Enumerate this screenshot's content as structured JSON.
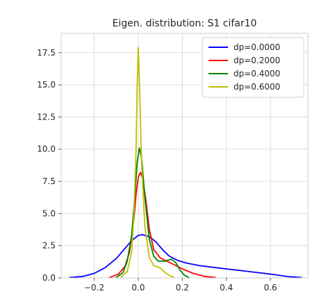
{
  "chart_data": {
    "type": "line",
    "title": "Eigen. distribution: S1 cifar10",
    "xlabel": "",
    "ylabel": "",
    "xlim": [
      -0.35,
      0.77
    ],
    "ylim": [
      0,
      19
    ],
    "x_ticks": [
      -0.2,
      0.0,
      0.2,
      0.4,
      0.6
    ],
    "x_tick_labels": [
      "−0.2",
      "0.0",
      "0.2",
      "0.4",
      "0.6"
    ],
    "y_ticks": [
      0,
      2.5,
      5,
      7.5,
      10,
      12.5,
      15,
      17.5
    ],
    "y_tick_labels": [
      "0.0",
      "2.5",
      "5.0",
      "7.5",
      "10.0",
      "12.5",
      "15.0",
      "17.5"
    ],
    "grid": true,
    "legend_position": "top-right",
    "series": [
      {
        "name": "dp=0.0000",
        "color": "#0000ff",
        "points": [
          [
            -0.31,
            0.03
          ],
          [
            -0.25,
            0.12
          ],
          [
            -0.2,
            0.35
          ],
          [
            -0.15,
            0.8
          ],
          [
            -0.1,
            1.5
          ],
          [
            -0.06,
            2.3
          ],
          [
            -0.03,
            2.9
          ],
          [
            0.0,
            3.3
          ],
          [
            0.02,
            3.35
          ],
          [
            0.05,
            3.2
          ],
          [
            0.08,
            2.8
          ],
          [
            0.11,
            2.2
          ],
          [
            0.14,
            1.7
          ],
          [
            0.18,
            1.35
          ],
          [
            0.22,
            1.15
          ],
          [
            0.28,
            0.95
          ],
          [
            0.35,
            0.8
          ],
          [
            0.45,
            0.6
          ],
          [
            0.55,
            0.4
          ],
          [
            0.62,
            0.25
          ],
          [
            0.68,
            0.1
          ],
          [
            0.74,
            0.03
          ]
        ]
      },
      {
        "name": "dp=0.2000",
        "color": "#ff0000",
        "points": [
          [
            -0.13,
            0.03
          ],
          [
            -0.09,
            0.3
          ],
          [
            -0.06,
            0.9
          ],
          [
            -0.04,
            2.0
          ],
          [
            -0.02,
            4.5
          ],
          [
            -0.01,
            6.5
          ],
          [
            0.0,
            7.8
          ],
          [
            0.01,
            8.2
          ],
          [
            0.02,
            7.7
          ],
          [
            0.035,
            6.0
          ],
          [
            0.05,
            3.8
          ],
          [
            0.07,
            2.2
          ],
          [
            0.1,
            1.55
          ],
          [
            0.13,
            1.3
          ],
          [
            0.16,
            1.05
          ],
          [
            0.2,
            0.7
          ],
          [
            0.25,
            0.35
          ],
          [
            0.3,
            0.12
          ],
          [
            0.35,
            0.03
          ]
        ]
      },
      {
        "name": "dp=0.4000",
        "color": "#008000",
        "points": [
          [
            -0.1,
            0.03
          ],
          [
            -0.07,
            0.4
          ],
          [
            -0.05,
            1.3
          ],
          [
            -0.03,
            3.3
          ],
          [
            -0.015,
            6.5
          ],
          [
            -0.005,
            9.0
          ],
          [
            0.005,
            10.1
          ],
          [
            0.015,
            9.3
          ],
          [
            0.03,
            6.3
          ],
          [
            0.05,
            3.0
          ],
          [
            0.07,
            1.7
          ],
          [
            0.09,
            1.3
          ],
          [
            0.12,
            1.3
          ],
          [
            0.15,
            1.45
          ],
          [
            0.17,
            1.2
          ],
          [
            0.19,
            0.6
          ],
          [
            0.21,
            0.2
          ],
          [
            0.23,
            0.03
          ]
        ]
      },
      {
        "name": "dp=0.6000",
        "color": "#bfbf00",
        "points": [
          [
            -0.08,
            0.03
          ],
          [
            -0.05,
            0.5
          ],
          [
            -0.03,
            2.0
          ],
          [
            -0.02,
            4.8
          ],
          [
            -0.01,
            10.0
          ],
          [
            -0.005,
            15.0
          ],
          [
            0.0,
            17.9
          ],
          [
            0.005,
            15.5
          ],
          [
            0.015,
            9.0
          ],
          [
            0.03,
            4.0
          ],
          [
            0.05,
            1.6
          ],
          [
            0.07,
            0.95
          ],
          [
            0.09,
            0.85
          ],
          [
            0.1,
            0.75
          ],
          [
            0.12,
            0.45
          ],
          [
            0.14,
            0.2
          ],
          [
            0.16,
            0.05
          ]
        ]
      }
    ]
  }
}
